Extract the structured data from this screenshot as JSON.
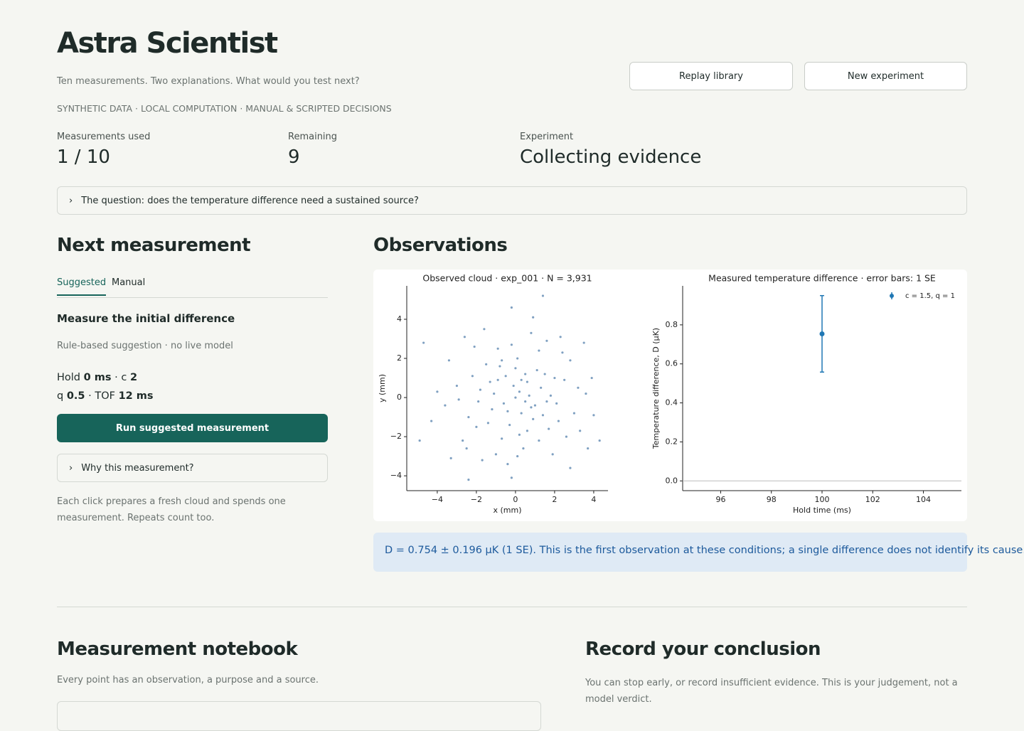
{
  "header": {
    "title": "Astra Scientist",
    "subtitle": "Ten measurements. Two explanations. What would you test next?",
    "tags": "SYNTHETIC DATA · LOCAL COMPUTATION · MANUAL & SCRIPTED DECISIONS",
    "buttons": [
      "Replay library",
      "New experiment"
    ]
  },
  "stats": [
    {
      "label": "Measurements used",
      "value": "1 / 10"
    },
    {
      "label": "Remaining",
      "value": "9"
    },
    {
      "label": "Experiment",
      "value": "Collecting evidence"
    }
  ],
  "question": "The question: does the temperature difference need a sustained source?",
  "next": {
    "heading": "Next measurement",
    "tabs": [
      "Suggested",
      "Manual"
    ],
    "suggestion": "Measure the initial difference",
    "note": "Rule-based suggestion · no live model",
    "params": [
      [
        "Hold ",
        "0 ms",
        " · c ",
        "2"
      ],
      [
        "q ",
        "0.5",
        " · TOF ",
        "12 ms"
      ]
    ],
    "button": "Run suggested measurement",
    "why": "Why this measurement?",
    "footnote": "Each click prepares a fresh cloud and spends one measurement. Repeats count too."
  },
  "observations": {
    "heading": "Observations",
    "info": "D = 0.754 ± 0.196 µK (1 SE). This is the first observation at these conditions; a single difference does not identify its cause."
  },
  "notebook": {
    "heading": "Measurement notebook",
    "caption": "Every point has an observation, a purpose and a source."
  },
  "conclusion": {
    "heading": "Record your conclusion",
    "caption": "You can stop early, or record insufficient evidence. This is your judgement, not a model verdict."
  },
  "chart_data": [
    {
      "type": "scatter",
      "title": "Observed cloud · exp_001 · N = 3,931",
      "xlabel": "x (mm)",
      "ylabel": "y (mm)",
      "color": "#2a6098",
      "xlim": [
        -5.56,
        4.73
      ],
      "ylim": [
        -4.76,
        5.71
      ],
      "xticks": [
        {
          "value": -4,
          "label": "−4"
        },
        {
          "value": -2,
          "label": "−2"
        },
        0,
        2,
        4
      ],
      "yticks": [
        {
          "value": -4,
          "label": "−4"
        },
        {
          "value": -2,
          "label": "−2"
        },
        0,
        2,
        4
      ],
      "x": [
        0.2,
        -0.5,
        1.0,
        0.6,
        -1.2,
        1.5,
        -0.3,
        0.9,
        -1.8,
        2.1,
        0.1,
        -0.7,
        1.7,
        -1.5,
        2.5,
        -2.4,
        0.4,
        -0.2,
        3.0,
        -3.0,
        1.2,
        -1.0,
        2.8,
        -2.7,
        0.8,
        -0.4,
        3.6,
        -3.6,
        1.9,
        -2.1,
        0.0,
        0.5,
        -0.1,
        0.7,
        -0.6,
        1.3,
        -0.9,
        0.3,
        1.1,
        -1.4,
        0.6,
        -0.8,
        1.8,
        -1.9,
        2.2,
        -2.2,
        0.2,
        0.0,
        1.4,
        -1.1,
        2.4,
        -2.5,
        3.3,
        -3.4,
        4.0,
        -4.0,
        0.9,
        -0.2,
        3.9,
        -4.3,
        -4.7,
        4.3,
        1.4,
        -2.4,
        -4.9,
        -0.2,
        2.8,
        -3.3,
        3.5,
        -1.6,
        0.5,
        -0.4,
        1.6,
        -1.3,
        0.8,
        0.3,
        -0.7,
        1.2,
        2.0,
        -2.0,
        2.6,
        -2.9,
        3.2,
        0.1,
        -0.9,
        1.6,
        -1.7,
        2.3,
        -2.6,
        3.7
      ],
      "y": [
        0.3,
        1.1,
        -0.4,
        0.8,
        -0.6,
        1.2,
        -1.4,
        -1.1,
        0.4,
        -0.3,
        2.0,
        -2.1,
        -1.6,
        1.7,
        0.9,
        -1.0,
        -2.6,
        2.7,
        -0.8,
        0.6,
        2.4,
        -2.9,
        1.9,
        -2.2,
        3.3,
        -3.4,
        0.2,
        -0.4,
        -2.9,
        2.6,
        0.0,
        -0.2,
        0.6,
        0.1,
        -0.3,
        0.5,
        0.9,
        -0.8,
        1.4,
        -1.3,
        -1.7,
        1.6,
        0.1,
        -0.2,
        -1.2,
        1.1,
        -1.9,
        1.5,
        -0.9,
        0.2,
        2.3,
        -2.6,
        -1.7,
        1.9,
        -0.9,
        0.3,
        4.1,
        -4.1,
        1.0,
        -1.2,
        2.8,
        -2.2,
        5.2,
        -4.2,
        -2.2,
        4.6,
        -3.6,
        -3.1,
        2.8,
        3.5,
        1.2,
        -0.7,
        -0.2,
        0.8,
        -0.5,
        0.9,
        1.9,
        -2.2,
        1.0,
        -1.5,
        -2.0,
        -0.1,
        0.5,
        -3.0,
        2.5,
        2.9,
        -3.2,
        3.1,
        3.1,
        -2.6
      ]
    },
    {
      "type": "errorbar",
      "title": "Measured temperature difference · error bars: 1 SE",
      "xlabel": "Hold time (ms)",
      "ylabel": "Temperature difference, D (µK)",
      "xlim": [
        94.5,
        105.5
      ],
      "ylim": [
        -0.05,
        1.0
      ],
      "xticks": [
        96,
        98,
        100,
        102,
        104
      ],
      "yticks": [
        {
          "value": 0,
          "label": "0.0"
        },
        0.2,
        0.4,
        0.6,
        0.8
      ],
      "hline": 0,
      "legend": "upper right",
      "x": [
        100
      ],
      "series": [
        {
          "name": "c = 1.5, q = 1",
          "color": "#1f77b4",
          "values": [
            0.754
          ],
          "errors": [
            0.196
          ]
        }
      ]
    }
  ]
}
